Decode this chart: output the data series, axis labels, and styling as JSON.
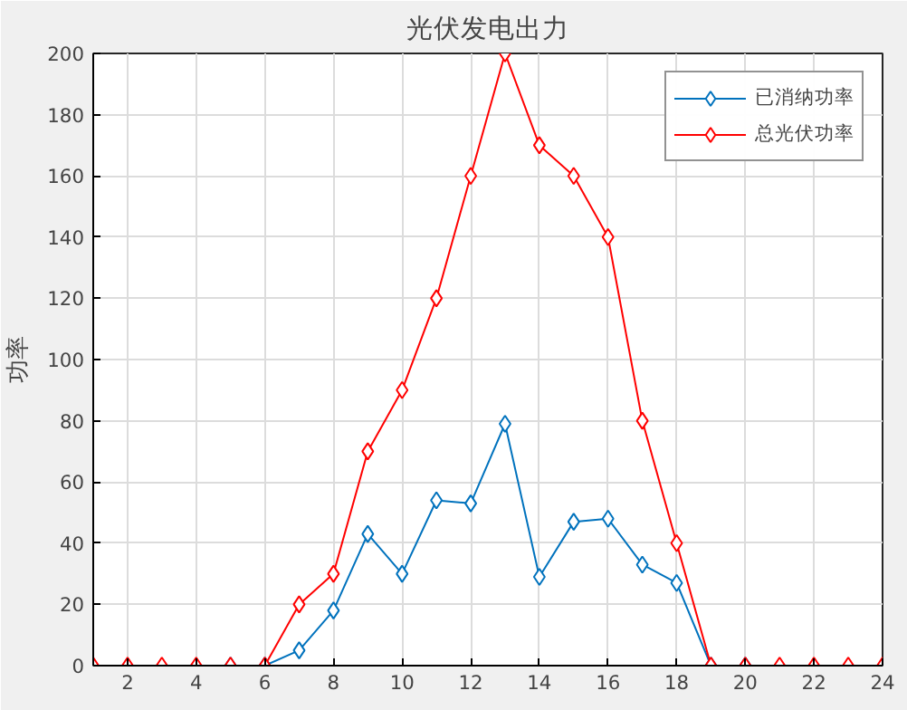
{
  "chart_data": {
    "type": "line",
    "title": "光伏发电出力",
    "ylabel": "功率",
    "x": [
      1,
      2,
      3,
      4,
      5,
      6,
      7,
      8,
      9,
      10,
      11,
      12,
      13,
      14,
      15,
      16,
      17,
      18,
      19,
      20,
      21,
      22,
      23,
      24
    ],
    "series": [
      {
        "name": "已消纳功率",
        "color": "#0072bd",
        "values": [
          null,
          null,
          null,
          null,
          0,
          0,
          5,
          18,
          43,
          30,
          54,
          53,
          79,
          29,
          47,
          48,
          33,
          27,
          0,
          0,
          null,
          null,
          null,
          null
        ]
      },
      {
        "name": "总光伏功率",
        "color": "#ff0000",
        "values": [
          0,
          0,
          0,
          0,
          0,
          0,
          20,
          30,
          70,
          90,
          120,
          160,
          200,
          170,
          160,
          140,
          80,
          40,
          0,
          0,
          0,
          0,
          0,
          0
        ]
      }
    ],
    "xlim": [
      1,
      24
    ],
    "xticks": [
      2,
      4,
      6,
      8,
      10,
      12,
      14,
      16,
      18,
      20,
      22,
      24
    ],
    "ylim": [
      0,
      200
    ],
    "yticks": [
      0,
      20,
      40,
      60,
      80,
      100,
      120,
      140,
      160,
      180,
      200
    ],
    "grid": true,
    "legend": "top right",
    "marker": "diamond",
    "line_style": "solid"
  }
}
